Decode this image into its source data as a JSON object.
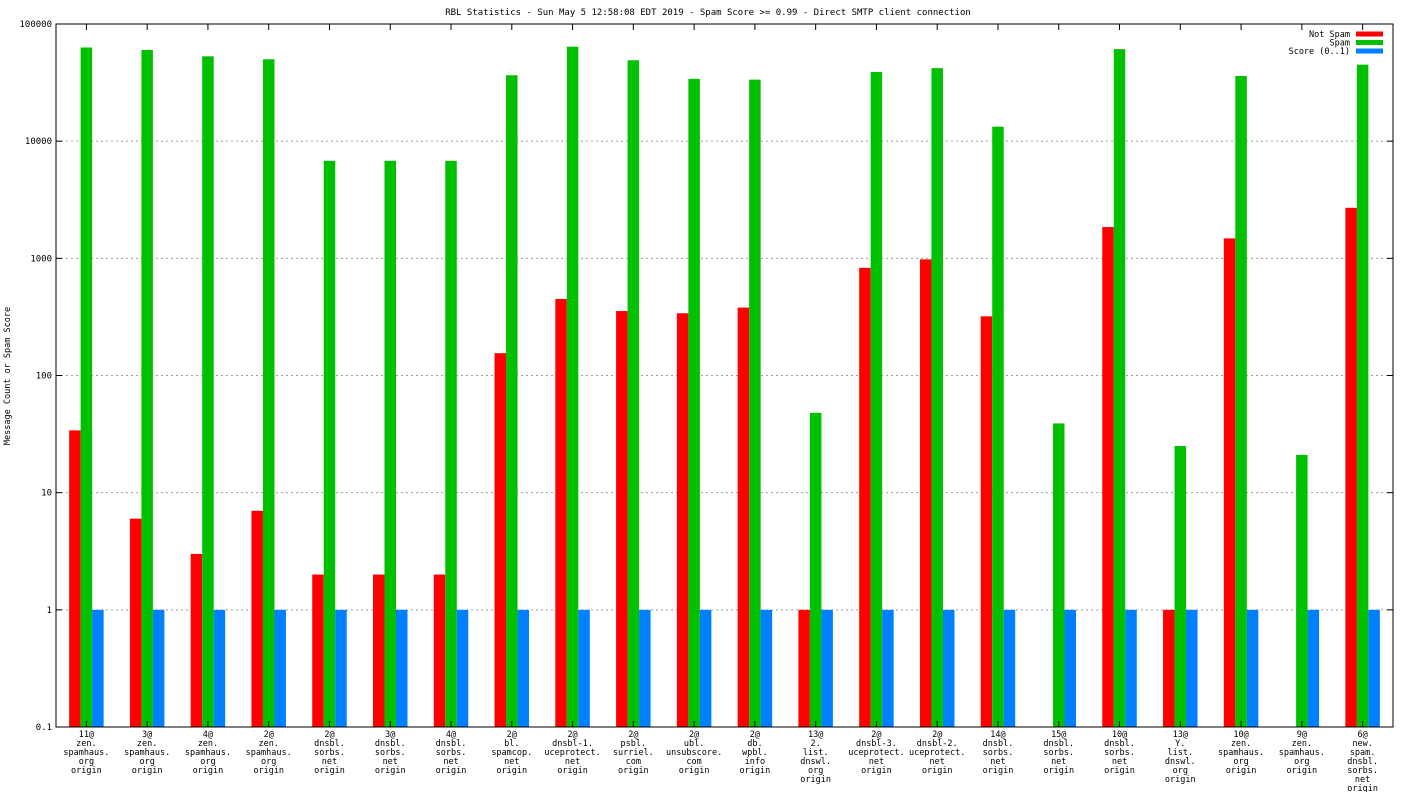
{
  "chart_data": {
    "type": "bar",
    "title": "RBL Statistics - Sun May  5 12:58:08 EDT 2019 - Spam Score >= 0.99 - Direct SMTP client connection",
    "xlabel": "",
    "ylabel": "Message Count or Spam Score",
    "yscale": "log",
    "ylim": [
      0.1,
      100000
    ],
    "yticks": [
      {
        "value": 0.1,
        "label": "0.1"
      },
      {
        "value": 1,
        "label": "1"
      },
      {
        "value": 10,
        "label": "10"
      },
      {
        "value": 100,
        "label": "100"
      },
      {
        "value": 1000,
        "label": "1000"
      },
      {
        "value": 10000,
        "label": "10000"
      },
      {
        "value": 100000,
        "label": "100000"
      }
    ],
    "grid": true,
    "legend_position": "top-right",
    "categories": [
      [
        "11@",
        "zen.",
        "spamhaus.",
        "org",
        "origin"
      ],
      [
        "3@",
        "zen.",
        "spamhaus.",
        "org",
        "origin"
      ],
      [
        "4@",
        "zen.",
        "spamhaus.",
        "org",
        "origin"
      ],
      [
        "2@",
        "zen.",
        "spamhaus.",
        "org",
        "origin"
      ],
      [
        "2@",
        "dnsbl.",
        "sorbs.",
        "net",
        "origin"
      ],
      [
        "3@",
        "dnsbl.",
        "sorbs.",
        "net",
        "origin"
      ],
      [
        "4@",
        "dnsbl.",
        "sorbs.",
        "net",
        "origin"
      ],
      [
        "2@",
        "bl.",
        "spamcop.",
        "net",
        "origin"
      ],
      [
        "2@",
        "dnsbl-1.",
        "uceprotect.",
        "net",
        "origin"
      ],
      [
        "2@",
        "psbl.",
        "surriel.",
        "com",
        "origin"
      ],
      [
        "2@",
        "ubl.",
        "unsubscore.",
        "com",
        "origin"
      ],
      [
        "2@",
        "db.",
        "wpbl.",
        "info",
        "origin"
      ],
      [
        "13@",
        "2.",
        "list.",
        "dnswl.",
        "org",
        "origin"
      ],
      [
        "2@",
        "dnsbl-3.",
        "uceprotect.",
        "net",
        "origin"
      ],
      [
        "2@",
        "dnsbl-2.",
        "uceprotect.",
        "net",
        "origin"
      ],
      [
        "14@",
        "dnsbl.",
        "sorbs.",
        "net",
        "origin"
      ],
      [
        "15@",
        "dnsbl.",
        "sorbs.",
        "net",
        "origin"
      ],
      [
        "10@",
        "dnsbl.",
        "sorbs.",
        "net",
        "origin"
      ],
      [
        "13@",
        "Y.",
        "list.",
        "dnswl.",
        "org",
        "origin"
      ],
      [
        "10@",
        "zen.",
        "spamhaus.",
        "org",
        "origin"
      ],
      [
        "9@",
        "zen.",
        "spamhaus.",
        "org",
        "origin"
      ],
      [
        "6@",
        "new.",
        "spam.",
        "dnsbl.",
        "sorbs.",
        "net",
        "origin"
      ]
    ],
    "series": [
      {
        "name": "Not Spam",
        "color": "#ff0000",
        "values": [
          34,
          6,
          3,
          7,
          2,
          2,
          2,
          155,
          450,
          355,
          340,
          380,
          1,
          830,
          980,
          320,
          null,
          1850,
          1,
          1480,
          null,
          2700
        ]
      },
      {
        "name": "Spam",
        "color": "#00c000",
        "values": [
          63000,
          60000,
          53000,
          50000,
          6800,
          6800,
          6800,
          36500,
          64000,
          49000,
          34000,
          33500,
          48,
          39000,
          42000,
          13300,
          39,
          61000,
          25,
          36000,
          21,
          45000
        ]
      },
      {
        "name": "Score (0..1)",
        "color": "#0080ff",
        "values": [
          1,
          1,
          1,
          1,
          1,
          1,
          1,
          1,
          1,
          1,
          1,
          1,
          1,
          1,
          1,
          1,
          1,
          1,
          1,
          1,
          1,
          1
        ]
      }
    ]
  }
}
